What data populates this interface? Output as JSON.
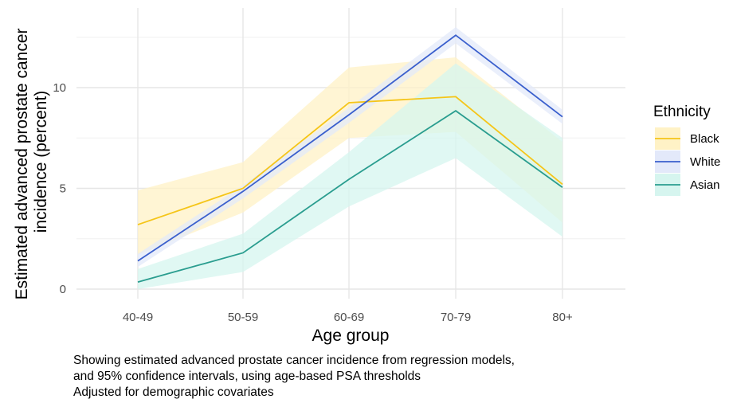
{
  "chart_data": {
    "type": "line",
    "xlabel": "Age group",
    "ylabel": "Estimated advanced prostate cancer incidence (percent)",
    "ylabel_lines": [
      "Estimated advanced prostate cancer",
      "incidence (percent)"
    ],
    "categories": [
      "40-49",
      "50-59",
      "60-69",
      "70-79",
      "80+"
    ],
    "y_ticks": [
      0,
      5,
      10
    ],
    "y_tick_labels": [
      "0",
      "5",
      "10"
    ],
    "ylim": [
      -0.1,
      13.8
    ],
    "grid": true,
    "legend": {
      "title": "Ethnicity",
      "position": "right"
    },
    "series": [
      {
        "name": "Black",
        "color": "#F5C518",
        "band_color": "#FFF2C6",
        "values": [
          3.2,
          5.0,
          9.25,
          9.55,
          5.2
        ],
        "lower": [
          1.7,
          3.8,
          7.5,
          7.8,
          3.3
        ],
        "upper": [
          4.9,
          6.3,
          11.0,
          11.5,
          7.3
        ]
      },
      {
        "name": "White",
        "color": "#3A5FCD",
        "band_color": "#E3E9FA",
        "values": [
          1.4,
          4.85,
          8.65,
          12.6,
          8.55
        ],
        "lower": [
          1.1,
          4.5,
          8.25,
          12.2,
          8.2
        ],
        "upper": [
          1.75,
          5.15,
          9.0,
          13.0,
          8.9
        ]
      },
      {
        "name": "Asian",
        "color": "#2A9D8F",
        "band_color": "#D6F5EF",
        "values": [
          0.35,
          1.8,
          5.45,
          8.85,
          5.05
        ],
        "lower": [
          0.0,
          0.85,
          4.1,
          6.5,
          2.6
        ],
        "upper": [
          1.0,
          2.75,
          6.8,
          11.2,
          7.5
        ]
      }
    ]
  },
  "caption": {
    "lines": [
      "Showing estimated advanced prostate cancer incidence from regression models,",
      "and 95% confidence intervals, using age-based PSA thresholds",
      "Adjusted for demographic covariates"
    ]
  }
}
